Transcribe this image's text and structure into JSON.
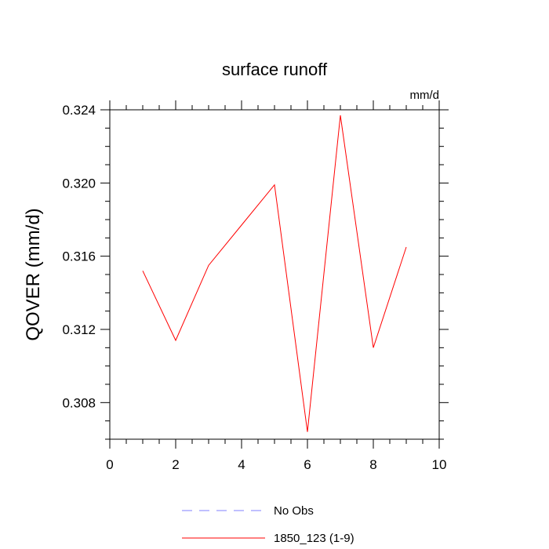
{
  "chart_data": {
    "type": "line",
    "title": "surface runoff",
    "units_label": "mm/d",
    "xlabel": "",
    "ylabel": "QOVER  (mm/d)",
    "xlim": [
      0,
      10
    ],
    "ylim": [
      0.306,
      0.324
    ],
    "x_ticks": [
      0,
      2,
      4,
      6,
      8,
      10
    ],
    "x_tick_labels": [
      "0",
      "2",
      "4",
      "6",
      "8",
      "10"
    ],
    "y_ticks": [
      0.308,
      0.312,
      0.316,
      0.32,
      0.324
    ],
    "y_tick_labels": [
      "0.308",
      "0.312",
      "0.316",
      "0.320",
      "0.324"
    ],
    "grid": false,
    "legend_position": "bottom-center",
    "series": [
      {
        "name": "No Obs",
        "color": "#8080ff",
        "style": "dashed",
        "x": [],
        "y": []
      },
      {
        "name": "1850_123 (1-9)",
        "color": "#ff0000",
        "style": "solid",
        "x": [
          1,
          2,
          3,
          4,
          5,
          6,
          7,
          8,
          9
        ],
        "y": [
          0.3152,
          0.3114,
          0.3155,
          0.3177,
          0.3199,
          0.3064,
          0.3237,
          0.311,
          0.3165
        ]
      }
    ]
  }
}
